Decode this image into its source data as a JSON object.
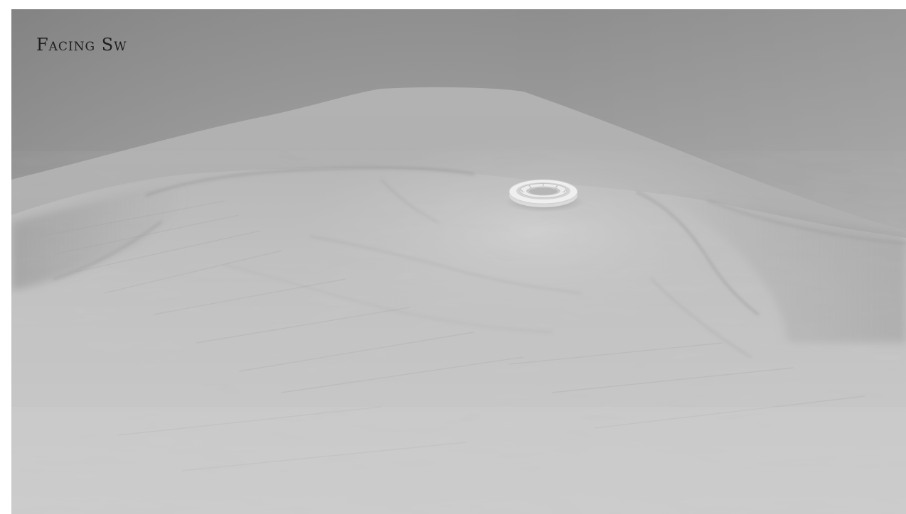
{
  "caption": "Facing Sw",
  "scene": {
    "subject": "terrain-render",
    "feature": "ring-structure",
    "palette": {
      "sky_top": "#8f8f8f",
      "sky_horizon": "#b9b9b9",
      "terrain_near": "#c9c9c9",
      "terrain_far": "#b4b4b4",
      "shadow": "#8a8a8a",
      "ring": "#ededed"
    }
  }
}
